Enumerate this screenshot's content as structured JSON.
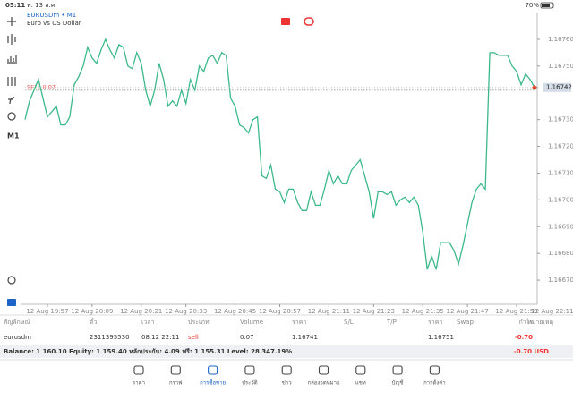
{
  "status_bar": {
    "time": "05:11",
    "date": "พ. 13 ส.ค.",
    "battery": "70%"
  },
  "chart_data": {
    "type": "line",
    "symbol": "EURUSDm • M1",
    "description": "Euro vs US Dollar",
    "timeframe": "M1",
    "color": "#3cb98a",
    "categories": [
      null,
      null,
      null,
      null,
      null,
      "12 Aug 19:57",
      null,
      null,
      null,
      null,
      null,
      null,
      null,
      null,
      null,
      "12 Aug 20:09",
      null,
      null,
      null,
      null,
      null,
      null,
      null,
      null,
      null,
      null,
      "12 Aug 20:21",
      null,
      null,
      null,
      null,
      null,
      null,
      null,
      null,
      null,
      "12 Aug 20:33",
      null,
      null,
      null,
      null,
      null,
      null,
      null,
      null,
      null,
      null,
      "12 Aug 20:45",
      null,
      null,
      null,
      null,
      null,
      null,
      null,
      null,
      null,
      "12 Aug 20:57",
      null,
      null,
      null,
      null,
      null,
      null,
      null,
      null,
      null,
      null,
      "12 Aug 21:11",
      null,
      null,
      null,
      null,
      null,
      null,
      null,
      null,
      null,
      "12 Aug 21:23",
      null,
      null,
      null,
      null,
      null,
      null,
      null,
      null,
      null,
      null,
      "12 Aug 21:35",
      null,
      null,
      null,
      null,
      null,
      null,
      null,
      null,
      null,
      "12 Aug 21:47",
      null,
      null,
      null,
      null,
      null,
      null,
      null,
      null,
      null,
      null,
      "12 Aug 21:59",
      null,
      null,
      null,
      null
    ],
    "values": [
      1.1673,
      1.16737,
      1.16741,
      1.16745,
      1.16738,
      1.16731,
      1.16733,
      1.16735,
      1.16728,
      1.16728,
      1.16731,
      1.16743,
      1.16746,
      1.1675,
      1.16757,
      1.16753,
      1.16751,
      1.16756,
      1.1676,
      1.16756,
      1.16753,
      1.16758,
      1.16757,
      1.1675,
      1.16749,
      1.16755,
      1.16751,
      1.16741,
      1.16735,
      1.16741,
      1.16751,
      1.16745,
      1.16735,
      1.16737,
      1.16735,
      1.16741,
      1.16736,
      1.16745,
      1.16741,
      1.1675,
      1.16748,
      1.16753,
      1.16754,
      1.16751,
      1.16755,
      1.16754,
      1.16738,
      1.16735,
      1.16728,
      1.16727,
      1.16725,
      1.1673,
      1.16731,
      1.16709,
      1.16708,
      1.16713,
      1.16704,
      1.16703,
      1.16699,
      1.16704,
      1.16704,
      1.16699,
      1.16696,
      1.16696,
      1.16703,
      1.16698,
      1.16698,
      1.16704,
      1.16711,
      1.16706,
      1.16709,
      1.16706,
      1.16706,
      1.16711,
      1.16713,
      1.16715,
      1.16709,
      1.16703,
      1.16693,
      1.16703,
      1.16703,
      1.16702,
      1.16703,
      1.16698,
      1.167,
      1.16701,
      1.16699,
      1.16701,
      1.16698,
      1.16688,
      1.16674,
      1.16679,
      1.16674,
      1.16684,
      1.16684,
      1.16684,
      1.16681,
      1.16676,
      1.16683,
      1.16691,
      1.16699,
      1.16704,
      1.16706,
      1.16704,
      1.16755,
      1.16755,
      1.16754,
      1.16754,
      1.16754,
      1.1675,
      1.16748,
      1.16743,
      1.16747,
      1.16745,
      1.16742
    ],
    "time_right": "12 Aug 22:11",
    "ylim": [
      1.16661,
      1.1677
    ],
    "yticks": [
      {
        "value": 1.1676,
        "label": "1.16760"
      },
      {
        "value": 1.1675,
        "label": "1.16750"
      },
      {
        "value": 1.1673,
        "label": "1.16730"
      },
      {
        "value": 1.1672,
        "label": "1.16720"
      },
      {
        "value": 1.1671,
        "label": "1.16710"
      },
      {
        "value": 1.167,
        "label": "1.16700"
      },
      {
        "value": 1.1669,
        "label": "1.16690"
      },
      {
        "value": 1.1668,
        "label": "1.16680"
      },
      {
        "value": 1.1667,
        "label": "1.16670"
      }
    ],
    "current_price": {
      "value": 1.16742,
      "label": "1.16742"
    },
    "order_label": "SELL 0.07",
    "order_price": 1.16741,
    "grid": false
  },
  "positions": {
    "headers": [
      "สัญลักษณ์",
      "ตั๋ว",
      "เวลา",
      "ประเภท",
      "Volume",
      "ราคา",
      "S/L",
      "T/P",
      "ราคา",
      "Swap",
      "กำไร",
      "หมายเหตุ"
    ],
    "rows": [
      [
        "eurusdm",
        "2311395530",
        "08.12 22:11",
        "sell",
        "0.07",
        "1.16741",
        "",
        "",
        "1.16751",
        "",
        "-0.70",
        ""
      ]
    ]
  },
  "balance": {
    "text": "Balance: 1 160.10 Equity: 1 159.40 หลักประกัน: 4.09 ฟรี: 1 155.31 Level: 28 347.19%",
    "profit": "-0.70  USD"
  },
  "nav": [
    "ราคา",
    "กราฟ",
    "การซื้อขาย",
    "ประวัติ",
    "ข่าว",
    "กล่องจดหมาย",
    "แชท",
    "บัญชี",
    "การตั้งค่า"
  ]
}
